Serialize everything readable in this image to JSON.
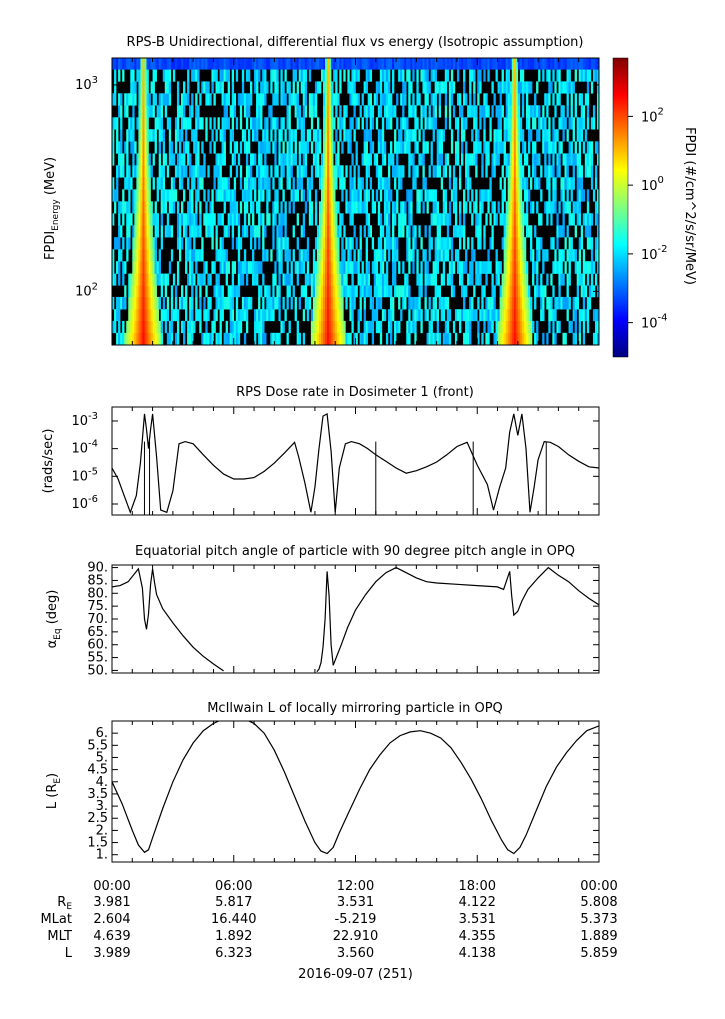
{
  "colors": {
    "colorbar_stops": [
      "#00007f",
      "#0000ff",
      "#007fff",
      "#00ffff",
      "#7fff7f",
      "#ffff00",
      "#ff7f00",
      "#ff0000",
      "#7f0000"
    ],
    "background_fill": "#000000",
    "line": "#000000"
  },
  "chart_data": [
    {
      "type": "heatmap",
      "title": "RPS-B  Unidirectional, differential flux vs energy (Isotropic assumption)",
      "ylabel_main": "FPDI",
      "ylabel_sub": "Energy",
      "ylabel_unit": "(MeV)",
      "yscale": "log",
      "ylim": [
        55,
        1350
      ],
      "yticks": [
        {
          "value": 100,
          "label": "10",
          "exp": "2"
        },
        {
          "value": 1000,
          "label": "10",
          "exp": "3"
        }
      ],
      "x_hours": [
        0,
        24
      ],
      "colorbar": {
        "label": "FPDI (#/cm^2/s/sr/MeV)",
        "scale": "log",
        "range": [
          1e-05,
          5000.0
        ],
        "ticks": [
          {
            "value": 0.0001,
            "label": "10",
            "exp": "-4"
          },
          {
            "value": 0.01,
            "label": "10",
            "exp": "-2"
          },
          {
            "value": 1,
            "label": "10",
            "exp": "0"
          },
          {
            "value": 100,
            "label": "10",
            "exp": "2"
          }
        ]
      },
      "belt_passes_hours": [
        1.5,
        10.6,
        19.8
      ],
      "energy_bins_mev": [
        55,
        63,
        72,
        82,
        94,
        107,
        122,
        140,
        160,
        183,
        209,
        239,
        273,
        312,
        357,
        408,
        466,
        533,
        610,
        697,
        797,
        911,
        1040,
        1190,
        1350
      ]
    },
    {
      "type": "line",
      "title": "RPS  Dose rate in Dosimeter 1 (front)",
      "ylabel": "(rads/sec)",
      "yscale": "log",
      "ylim": [
        4e-07,
        0.0032
      ],
      "yticks": [
        {
          "value": 1e-06,
          "label": "10",
          "exp": "-6"
        },
        {
          "value": 1e-05,
          "label": "10",
          "exp": "-5"
        },
        {
          "value": 0.0001,
          "label": "10",
          "exp": "-4"
        },
        {
          "value": 0.001,
          "label": "10",
          "exp": "-3"
        }
      ],
      "series": [
        {
          "x": [
            0,
            0.3,
            0.6,
            0.9,
            1.2,
            1.4,
            1.6,
            1.7,
            1.8,
            1.9,
            2.0,
            2.2,
            2.4,
            2.7,
            3.0,
            3.3,
            3.6,
            4.0,
            4.5,
            5.0,
            5.5,
            6.0,
            6.5,
            7.0,
            7.5,
            8.0,
            8.5,
            9.0,
            9.2,
            9.5,
            9.8,
            10.0,
            10.2,
            10.4,
            10.6,
            10.8,
            11.0,
            11.2,
            11.5,
            11.8,
            12.2,
            12.6,
            13.0,
            13.5,
            14.0,
            14.5,
            15.0,
            15.5,
            16.0,
            16.5,
            17.0,
            17.5,
            18.0,
            18.5,
            18.8,
            19.1,
            19.4,
            19.6,
            19.8,
            20.0,
            20.2,
            20.4,
            20.6,
            20.8,
            21.0,
            21.3,
            21.6,
            22.0,
            22.5,
            23.0,
            23.5,
            24.0
          ],
          "y": [
            2e-05,
            8e-06,
            2e-06,
            5e-07,
            2e-06,
            3e-05,
            0.0018,
            0.0005,
            0.0001,
            0.0005,
            0.0018,
            5e-05,
            6e-07,
            5e-07,
            3e-06,
            0.00015,
            0.00018,
            0.00015,
            6e-05,
            2.5e-05,
            1.2e-05,
            8e-06,
            8e-06,
            9e-06,
            1.5e-05,
            3e-05,
            7e-05,
            0.00017,
            5e-05,
            6e-06,
            5e-07,
            4e-06,
            0.0001,
            0.0015,
            0.0018,
            8e-05,
            5e-07,
            2e-05,
            0.00015,
            0.00018,
            0.00015,
            0.0001,
            6e-05,
            3.5e-05,
            2e-05,
            1.3e-05,
            1.6e-05,
            2.2e-05,
            3.3e-05,
            6e-05,
            0.00012,
            0.00017,
            2.5e-05,
            5e-06,
            6e-07,
            4e-06,
            2e-05,
            0.0004,
            0.0018,
            0.0003,
            0.0018,
            0.0001,
            5e-07,
            4e-06,
            4e-05,
            0.00018,
            0.00017,
            0.00012,
            6e-05,
            3.5e-05,
            2.2e-05,
            2e-05
          ]
        }
      ],
      "spikes_hours": [
        1.6,
        1.85,
        13.0,
        17.8,
        21.4
      ]
    },
    {
      "type": "line",
      "title": "Equatorial pitch angle of particle with 90 degree pitch angle in OPQ",
      "ylabel": "α",
      "ylabel_sub": "Eq",
      "ylabel_unit": "(deg)",
      "ylim": [
        49,
        91
      ],
      "yticks": [
        {
          "value": 50,
          "label": "50."
        },
        {
          "value": 55,
          "label": "55."
        },
        {
          "value": 60,
          "label": "60."
        },
        {
          "value": 65,
          "label": "65."
        },
        {
          "value": 70,
          "label": "70."
        },
        {
          "value": 75,
          "label": "75."
        },
        {
          "value": 80,
          "label": "80."
        },
        {
          "value": 85,
          "label": "85."
        },
        {
          "value": 90,
          "label": "90."
        }
      ],
      "series": [
        {
          "x": [
            0,
            0.4,
            0.8,
            1.1,
            1.3,
            1.5,
            1.6,
            1.7,
            1.8,
            1.9,
            2.0,
            2.1,
            2.2,
            2.5,
            3.0,
            3.5,
            4.0,
            4.5,
            5.0,
            5.5,
            6.0,
            6.5,
            7.0,
            8.0,
            9.0,
            10.0,
            10.1,
            10.2,
            10.3,
            10.4,
            10.5,
            10.6,
            10.7,
            10.8,
            10.9,
            11.0,
            11.3,
            11.6,
            12.0,
            12.5,
            13.0,
            13.5,
            14.0,
            14.5,
            15.0,
            15.5,
            16.0,
            17.0,
            18.0,
            19.0,
            19.3,
            19.6,
            19.7,
            19.8,
            20.0,
            20.2,
            20.5,
            21.0,
            21.5,
            22.0,
            22.5,
            23.0,
            23.5,
            24.0
          ],
          "y": [
            82.5,
            83.0,
            84.5,
            87.5,
            89.5,
            82.0,
            70.0,
            66.0,
            72.0,
            83.5,
            89.5,
            84.0,
            79.5,
            74.0,
            68.5,
            63.5,
            59.0,
            55.5,
            52.5,
            49.8,
            null,
            null,
            null,
            null,
            null,
            null,
            49.5,
            50.5,
            53.0,
            59.0,
            70.0,
            88.5,
            79.0,
            60.0,
            52.0,
            54.0,
            60.0,
            66.5,
            73.5,
            79.5,
            84.5,
            88.0,
            90.0,
            88.0,
            86.0,
            84.5,
            84.0,
            83.5,
            83.0,
            82.5,
            81.5,
            88.5,
            79.0,
            71.5,
            73.0,
            77.0,
            81.5,
            86.0,
            90.0,
            87.0,
            84.5,
            81.0,
            78.0,
            75.5
          ]
        }
      ]
    },
    {
      "type": "line",
      "title": "McIlwain L of locally mirroring particle in OPQ",
      "ylabel": "L (R",
      "ylabel_sub": "E",
      "ylabel_close": ")",
      "ylim": [
        0.7,
        6.5
      ],
      "yticks": [
        {
          "value": 1,
          "label": "1."
        },
        {
          "value": 1.5,
          "label": "1.5"
        },
        {
          "value": 2,
          "label": "2."
        },
        {
          "value": 2.5,
          "label": "2.5"
        },
        {
          "value": 3,
          "label": "3."
        },
        {
          "value": 3.5,
          "label": "3.5"
        },
        {
          "value": 4,
          "label": "4."
        },
        {
          "value": 4.5,
          "label": "4.5"
        },
        {
          "value": 5,
          "label": "5."
        },
        {
          "value": 5.5,
          "label": "5.5"
        },
        {
          "value": 6,
          "label": "6."
        }
      ],
      "series": [
        {
          "x": [
            0,
            0.5,
            1.0,
            1.3,
            1.6,
            1.8,
            2.0,
            2.5,
            3.0,
            3.5,
            4.0,
            4.5,
            5.0,
            5.5,
            6.0,
            6.5,
            7.0,
            7.5,
            8.0,
            8.5,
            9.0,
            9.5,
            10.0,
            10.3,
            10.6,
            10.9,
            11.2,
            11.7,
            12.2,
            12.7,
            13.2,
            13.7,
            14.2,
            14.7,
            15.2,
            15.7,
            16.2,
            16.7,
            17.2,
            17.7,
            18.2,
            18.7,
            19.2,
            19.5,
            19.8,
            20.1,
            20.4,
            20.9,
            21.4,
            21.9,
            22.4,
            22.9,
            23.4,
            24.0
          ],
          "y": [
            4.0,
            3.1,
            2.0,
            1.4,
            1.1,
            1.2,
            1.7,
            2.9,
            4.0,
            4.9,
            5.6,
            6.1,
            6.4,
            6.6,
            6.65,
            6.6,
            6.4,
            6.0,
            5.3,
            4.4,
            3.4,
            2.4,
            1.5,
            1.15,
            1.05,
            1.3,
            1.9,
            2.8,
            3.7,
            4.5,
            5.1,
            5.6,
            5.9,
            6.05,
            6.1,
            6.0,
            5.8,
            5.4,
            4.8,
            4.1,
            3.3,
            2.4,
            1.6,
            1.2,
            1.05,
            1.3,
            1.8,
            2.8,
            3.8,
            4.6,
            5.2,
            5.7,
            6.1,
            6.3
          ]
        }
      ]
    }
  ],
  "time_axis": {
    "tick_labels": [
      "00:00",
      "06:00",
      "12:00",
      "18:00",
      "00:00"
    ]
  },
  "ephemeris": {
    "row_labels": [
      "R",
      "MLat",
      "MLT",
      "L"
    ],
    "row_label_sub": [
      "E",
      "",
      "",
      ""
    ],
    "rows": [
      [
        "3.981",
        "5.817",
        "3.531",
        "4.122",
        "5.808"
      ],
      [
        "2.604",
        "16.440",
        "-5.219",
        "3.531",
        "5.373"
      ],
      [
        "4.639",
        "1.892",
        "22.910",
        "4.355",
        "1.889"
      ],
      [
        "3.989",
        "6.323",
        "3.560",
        "4.138",
        "5.859"
      ]
    ]
  },
  "date_label": "2016-09-07 (251)"
}
